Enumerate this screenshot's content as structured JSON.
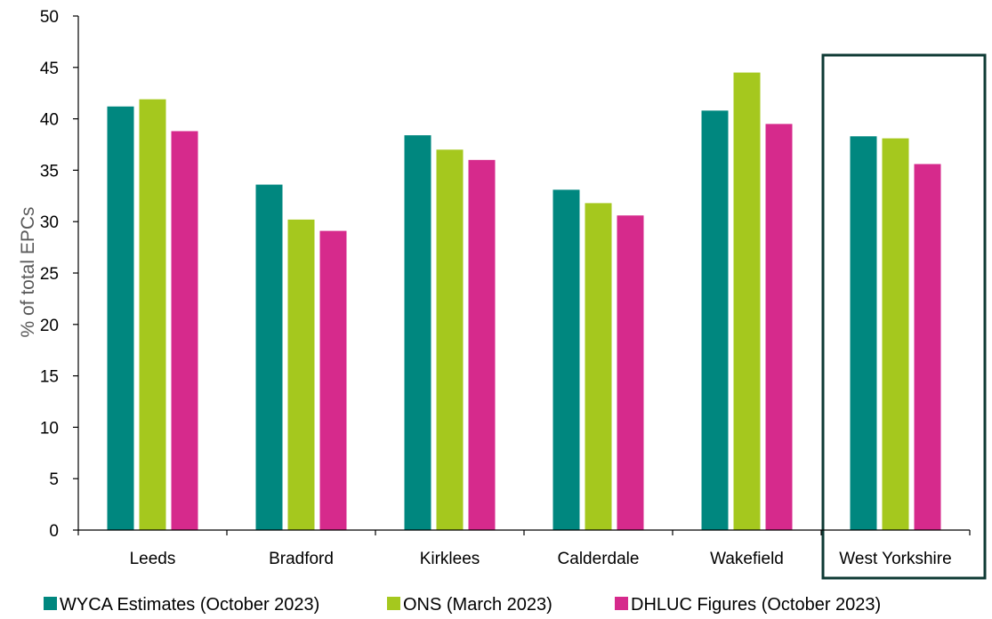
{
  "chart_data": {
    "type": "bar",
    "title": "",
    "xlabel": "",
    "ylabel": "% of total EPCs",
    "ylim": [
      0,
      50
    ],
    "yticks": [
      0,
      5,
      10,
      15,
      20,
      25,
      30,
      35,
      40,
      45,
      50
    ],
    "grid": false,
    "legend_position": "bottom",
    "categories": [
      "Leeds",
      "Bradford",
      "Kirklees",
      "Calderdale",
      "Wakefield",
      "West Yorkshire"
    ],
    "highlighted_category": "West Yorkshire",
    "series": [
      {
        "name": "WYCA Estimates (October 2023)",
        "color": "#00877F",
        "values": [
          41.2,
          33.6,
          38.4,
          33.1,
          40.8,
          38.3
        ]
      },
      {
        "name": "ONS (March 2023)",
        "color": "#A5C81E",
        "values": [
          41.9,
          30.2,
          37.0,
          31.8,
          44.5,
          38.1
        ]
      },
      {
        "name": "DHLUC Figures (October 2023)",
        "color": "#D62A8C",
        "values": [
          38.8,
          29.1,
          36.0,
          30.6,
          39.5,
          35.6
        ]
      }
    ],
    "highlight_box_color": "#0E3A34"
  }
}
